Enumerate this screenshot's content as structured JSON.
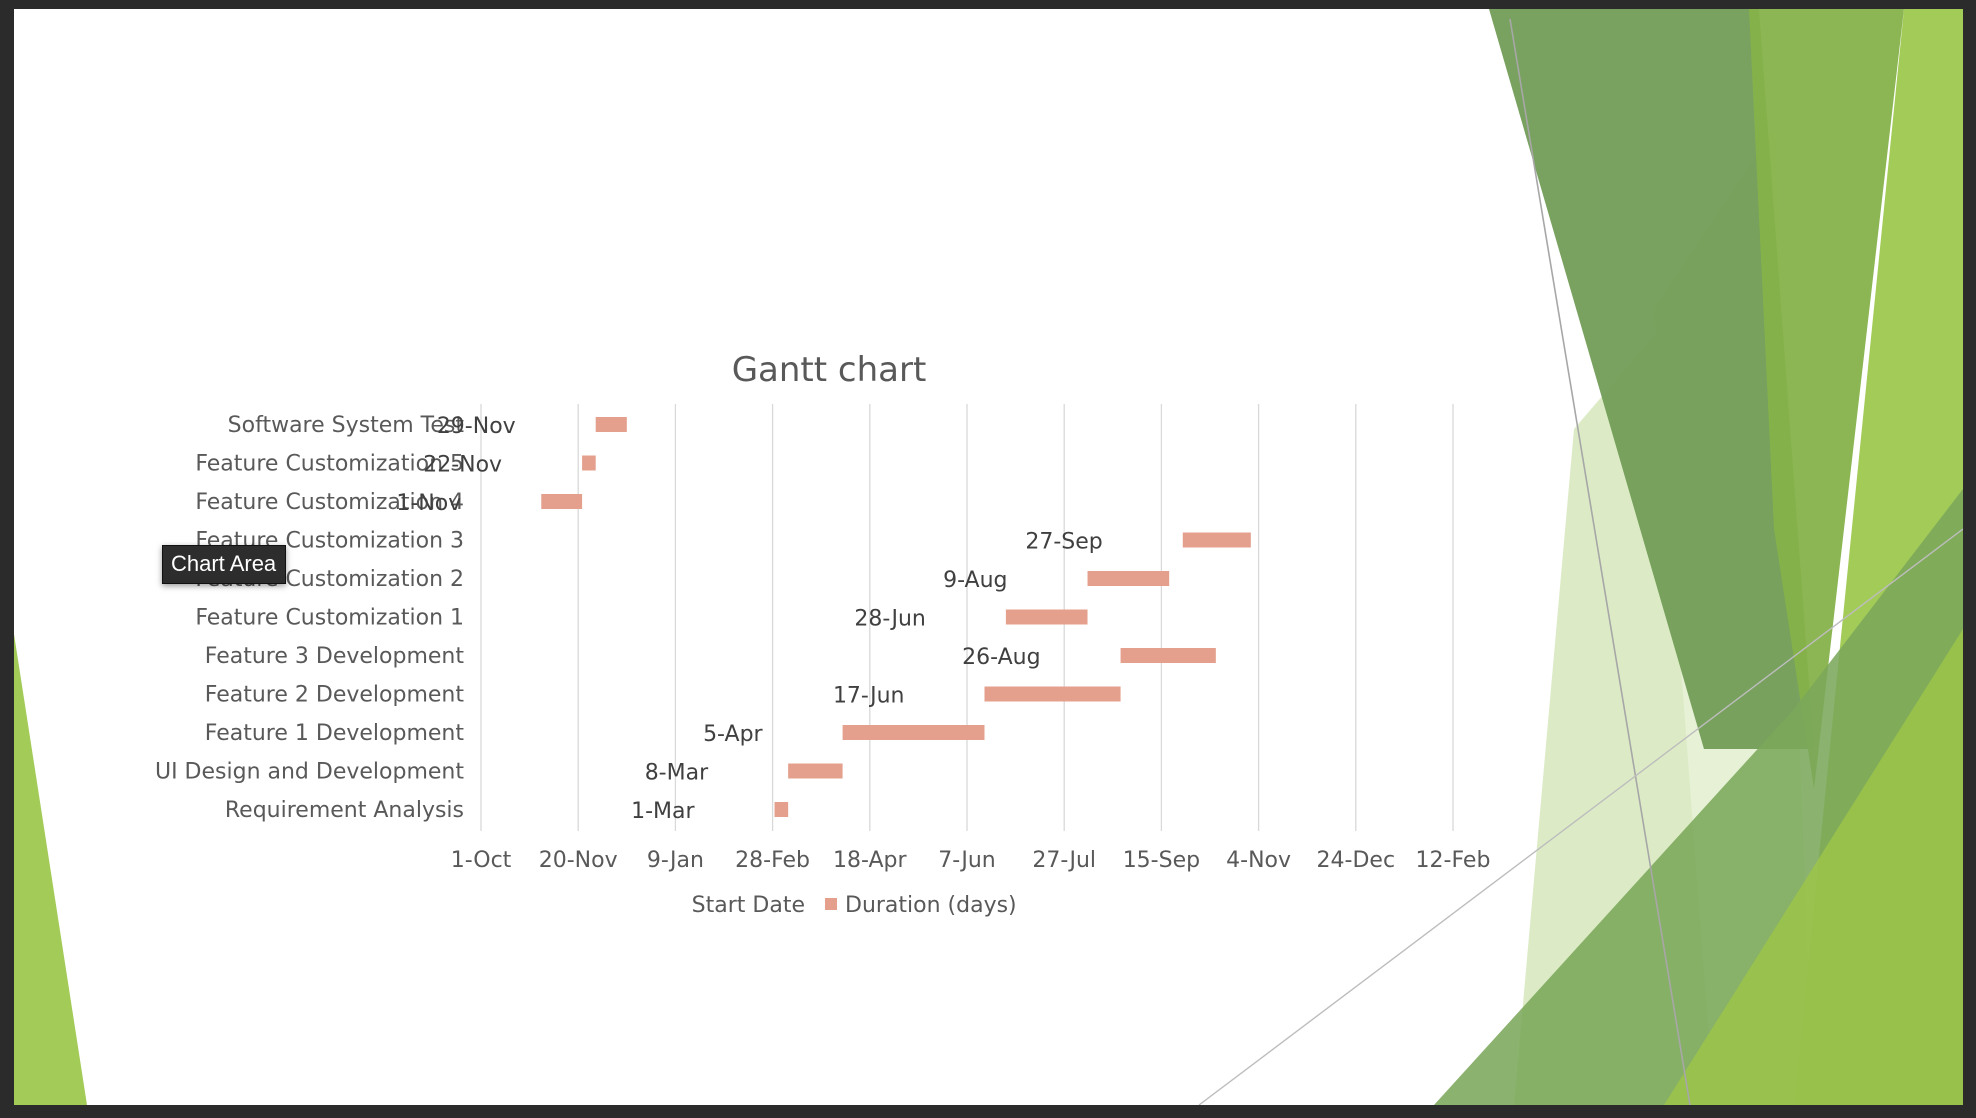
{
  "slide": {
    "tooltip": "Chart Area",
    "colors": {
      "green_dark": "#6e9a53",
      "green_mid": "#86b24a",
      "green_light": "#9ec84f",
      "green_pale": "#dcebc6",
      "grid": "#d9d9d9",
      "text": "#595959",
      "bar": "#e4a08c"
    }
  },
  "chart_data": {
    "type": "bar",
    "orientation": "horizontal",
    "stacked": true,
    "title": "Gantt chart",
    "xlabel": "",
    "ylabel": "",
    "categories": [
      "Requirement Analysis",
      "UI Design and Development",
      "Feature 1 Development",
      "Feature 2 Development",
      "Feature 3 Development",
      "Feature Customization 1",
      "Feature Customization 2",
      "Feature Customization 3",
      "Feature Customization 4",
      "Feature Customization 5",
      "Software System Test"
    ],
    "start_labels": [
      "1-Mar",
      "8-Mar",
      "5-Apr",
      "17-Jun",
      "26-Aug",
      "28-Jun",
      "9-Aug",
      "27-Sep",
      "1-Nov",
      "22-Nov",
      "29-Nov"
    ],
    "x_ticks": [
      "1-Oct",
      "20-Nov",
      "9-Jan",
      "28-Feb",
      "18-Apr",
      "7-Jun",
      "27-Jul",
      "15-Sep",
      "4-Nov",
      "24-Dec",
      "12-Feb"
    ],
    "x_tick_step_days": 50,
    "series": [
      {
        "name": "Start Date",
        "values": [
          "1-Mar",
          "8-Mar",
          "5-Apr",
          "17-Jun",
          "26-Aug",
          "28-Jun",
          "9-Aug",
          "27-Sep",
          "1-Nov",
          "22-Nov",
          "29-Nov"
        ],
        "visible": false
      },
      {
        "name": "Duration (days)",
        "values": [
          7,
          28,
          73,
          70,
          49,
          42,
          42,
          35,
          21,
          7,
          16
        ],
        "color": "#e4a08c"
      }
    ],
    "grid": true,
    "legend": "bottom"
  }
}
